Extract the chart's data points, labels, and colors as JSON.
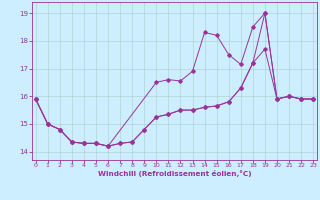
{
  "xlabel": "Windchill (Refroidissement éolien,°C)",
  "background_color": "#cceeff",
  "grid_color": "#aacccc",
  "line_color": "#993399",
  "xlim": [
    -0.3,
    23.3
  ],
  "ylim": [
    13.7,
    19.4
  ],
  "yticks": [
    14,
    15,
    16,
    17,
    18,
    19
  ],
  "xticks": [
    0,
    1,
    2,
    3,
    4,
    5,
    6,
    7,
    8,
    9,
    10,
    11,
    12,
    13,
    14,
    15,
    16,
    17,
    18,
    19,
    20,
    21,
    22,
    23
  ],
  "series1_x": [
    0,
    1,
    2,
    3,
    4,
    5,
    6,
    7,
    8,
    9,
    10,
    11,
    12,
    13,
    14,
    15,
    16,
    17,
    18,
    19,
    20,
    21,
    22,
    23
  ],
  "series1_y": [
    15.9,
    15.0,
    14.8,
    14.35,
    14.3,
    14.3,
    14.2,
    14.3,
    14.35,
    14.8,
    15.25,
    15.35,
    15.5,
    15.5,
    15.6,
    15.65,
    15.8,
    16.3,
    17.2,
    17.7,
    15.9,
    16.0,
    15.9,
    15.9
  ],
  "series2_x": [
    0,
    1,
    2,
    3,
    4,
    5,
    6,
    10,
    11,
    12,
    13,
    14,
    15,
    16,
    17,
    18,
    19,
    20,
    21,
    22,
    23
  ],
  "series2_y": [
    15.9,
    15.0,
    14.8,
    14.35,
    14.3,
    14.3,
    14.2,
    16.5,
    16.6,
    16.55,
    16.9,
    18.3,
    18.2,
    17.5,
    17.15,
    18.5,
    19.0,
    15.9,
    16.0,
    15.9,
    15.9
  ],
  "series3_x": [
    0,
    1,
    2,
    3,
    4,
    5,
    6,
    7,
    8,
    9,
    10,
    11,
    12,
    13,
    14,
    15,
    16,
    17,
    18,
    19,
    20,
    21,
    22,
    23
  ],
  "series3_y": [
    15.9,
    15.0,
    14.8,
    14.35,
    14.3,
    14.3,
    14.2,
    14.3,
    14.35,
    14.8,
    15.25,
    15.35,
    15.5,
    15.5,
    15.6,
    15.65,
    15.8,
    16.3,
    17.2,
    19.0,
    15.9,
    16.0,
    15.9,
    15.9
  ]
}
